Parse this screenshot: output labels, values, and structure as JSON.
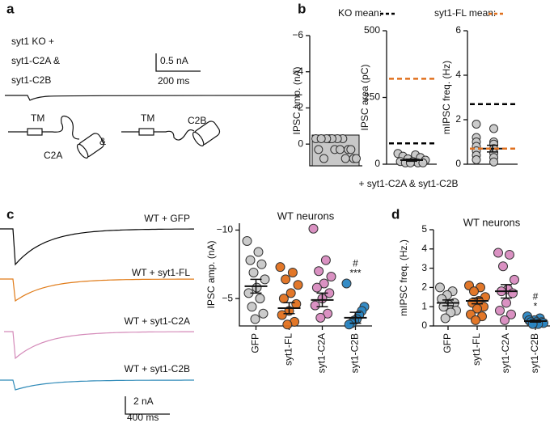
{
  "panel_labels": [
    "a",
    "b",
    "c",
    "d"
  ],
  "panel_a": {
    "lines": [
      "syt1 KO +",
      "syt1-C2A &",
      "syt1-C2B"
    ],
    "scale_amp": "0.5 nA",
    "scale_time": "200 ms",
    "diagram": {
      "tm1": "TM",
      "c2a": "C2A",
      "and": "&",
      "tm2": "TM",
      "c2b": "C2B"
    }
  },
  "panel_b": {
    "legend": [
      {
        "label": "KO mean:",
        "color": "#000000"
      },
      {
        "label": "syt1-FL mean:",
        "color": "#e0701e"
      }
    ],
    "footer": "+ syt1-C2A & syt1-C2B"
  },
  "panel_c_traces": {
    "labels": [
      "WT + GFP",
      "WT + syt1-FL",
      "WT + syt1-C2A",
      "WT + syt1-C2B"
    ],
    "colors": [
      "#000000",
      "#e07b18",
      "#d48ab9",
      "#2f8ab8"
    ],
    "scale_amp": "2 nA",
    "scale_time": "400 ms"
  },
  "chart_data": [
    {
      "type": "strip",
      "ylabel": "IPSC amp. (nA)",
      "ylim": [
        -6,
        1.2
      ],
      "y_inverted": true,
      "yticks": [
        {
          "value": -6,
          "label": "−6"
        },
        {
          "value": -4,
          "label": "−4"
        },
        {
          "value": -2,
          "label": "−2"
        },
        0
      ],
      "bar": true,
      "groups": [
        {
          "color": "#c8c8c8",
          "mean": -0.5,
          "values": [
            -0.3,
            0.3,
            0.8,
            -0.3,
            0.3,
            0.8,
            -0.3,
            0.3,
            -0.3,
            0.8,
            -0.3,
            0.3,
            -0.3,
            0.8,
            -0.3,
            0.3
          ]
        }
      ]
    },
    {
      "type": "strip",
      "ylabel": "IPSC area (pC)",
      "ylim": [
        0,
        500
      ],
      "yticks": [
        0,
        250,
        500
      ],
      "ref_lines": [
        {
          "value": 78,
          "color": "#000000"
        },
        {
          "value": 320,
          "color": "#e0701e"
        }
      ],
      "groups": [
        {
          "color": "#c8c8c8",
          "mean": 15,
          "sem": 4,
          "values": [
            40,
            35,
            30,
            25,
            20,
            15,
            10,
            10,
            5,
            5,
            5,
            5
          ]
        }
      ]
    },
    {
      "type": "strip",
      "ylabel": "mIPSC freq. (Hz)",
      "ylim": [
        0,
        6
      ],
      "yticks": [
        0,
        2,
        4,
        6
      ],
      "ref_lines": [
        {
          "value": 2.7,
          "color": "#000000"
        },
        {
          "value": 0.7,
          "color": "#e0701e"
        }
      ],
      "groups": [
        {
          "color": "#c8c8c8",
          "mean": 0.7,
          "sem": 0.15,
          "values": [
            1.8,
            1.6,
            1.2,
            1.0,
            1.0,
            0.9,
            0.8,
            0.7,
            0.6,
            0.5,
            0.4,
            0.3,
            0.2,
            0.1
          ]
        }
      ]
    },
    {
      "type": "strip",
      "title": "WT neurons",
      "ylabel": "IPSC amp. (nA)",
      "ylim": [
        -10.5,
        -3
      ],
      "y_inverted": true,
      "yticks": [
        {
          "value": -10,
          "label": "−10"
        },
        {
          "value": -5,
          "label": "−5"
        }
      ],
      "categories": [
        "GFP",
        "syt1-FL",
        "syt1-C2A",
        "syt1-C2B"
      ],
      "groups": [
        {
          "color": "#c8c8c8",
          "mean": -5.9,
          "sem": 0.5,
          "values": [
            -9.2,
            -8.4,
            -7.8,
            -7.5,
            -6.9,
            -6.4,
            -5.8,
            -5.4,
            -5,
            -4.4,
            -3.9,
            -3.5
          ]
        },
        {
          "color": "#e0701e",
          "mean": -4.3,
          "sem": 0.4,
          "values": [
            -7.3,
            -6.9,
            -6.4,
            -6,
            -5.4,
            -5,
            -4.6,
            -4.1,
            -3.8,
            -3.3,
            -3.1
          ]
        },
        {
          "color": "#d88bbf",
          "mean": -4.9,
          "sem": 0.5,
          "values": [
            -10.1,
            -7.8,
            -7,
            -6.6,
            -6.1,
            -5.8,
            -5.4,
            -5,
            -4.5,
            -3.9,
            -3.6
          ]
        },
        {
          "color": "#2a86c3",
          "mean": -3.6,
          "sem": 0.4,
          "values": [
            -6.1,
            -4.4,
            -4.1,
            -3.8,
            -3.5,
            -3.4,
            -3.2,
            -3.1
          ],
          "annotation": [
            "#",
            "***"
          ]
        }
      ]
    },
    {
      "type": "strip",
      "title": "WT neurons",
      "ylabel": "mIPSC freq. (Hz.)",
      "ylim": [
        0,
        5
      ],
      "yticks": [
        0,
        1,
        2,
        3,
        4,
        5
      ],
      "categories": [
        "GFP",
        "syt1-FL",
        "syt1-C2A",
        "syt1-C2B"
      ],
      "groups": [
        {
          "color": "#c8c8c8",
          "mean": 1.2,
          "sem": 0.15,
          "values": [
            2.0,
            1.8,
            1.6,
            1.4,
            1.2,
            1.1,
            1.0,
            0.8,
            0.7,
            0.4
          ]
        },
        {
          "color": "#e0701e",
          "mean": 1.3,
          "sem": 0.15,
          "values": [
            2.1,
            2.0,
            1.8,
            1.5,
            1.3,
            1.2,
            1.0,
            0.9,
            0.6,
            0.5,
            0.3
          ]
        },
        {
          "color": "#d88bbf",
          "mean": 1.8,
          "sem": 0.35,
          "values": [
            3.8,
            3.7,
            3.1,
            2.4,
            1.9,
            1.8,
            1.7,
            1.2,
            0.8,
            0.6,
            0.3
          ]
        },
        {
          "color": "#2a86c3",
          "mean": 0.25,
          "sem": 0.05,
          "values": [
            0.5,
            0.4,
            0.3,
            0.3,
            0.2,
            0.2,
            0.2,
            0.15,
            0.1,
            0.1
          ],
          "annotation": [
            "#",
            "*"
          ]
        }
      ]
    }
  ]
}
